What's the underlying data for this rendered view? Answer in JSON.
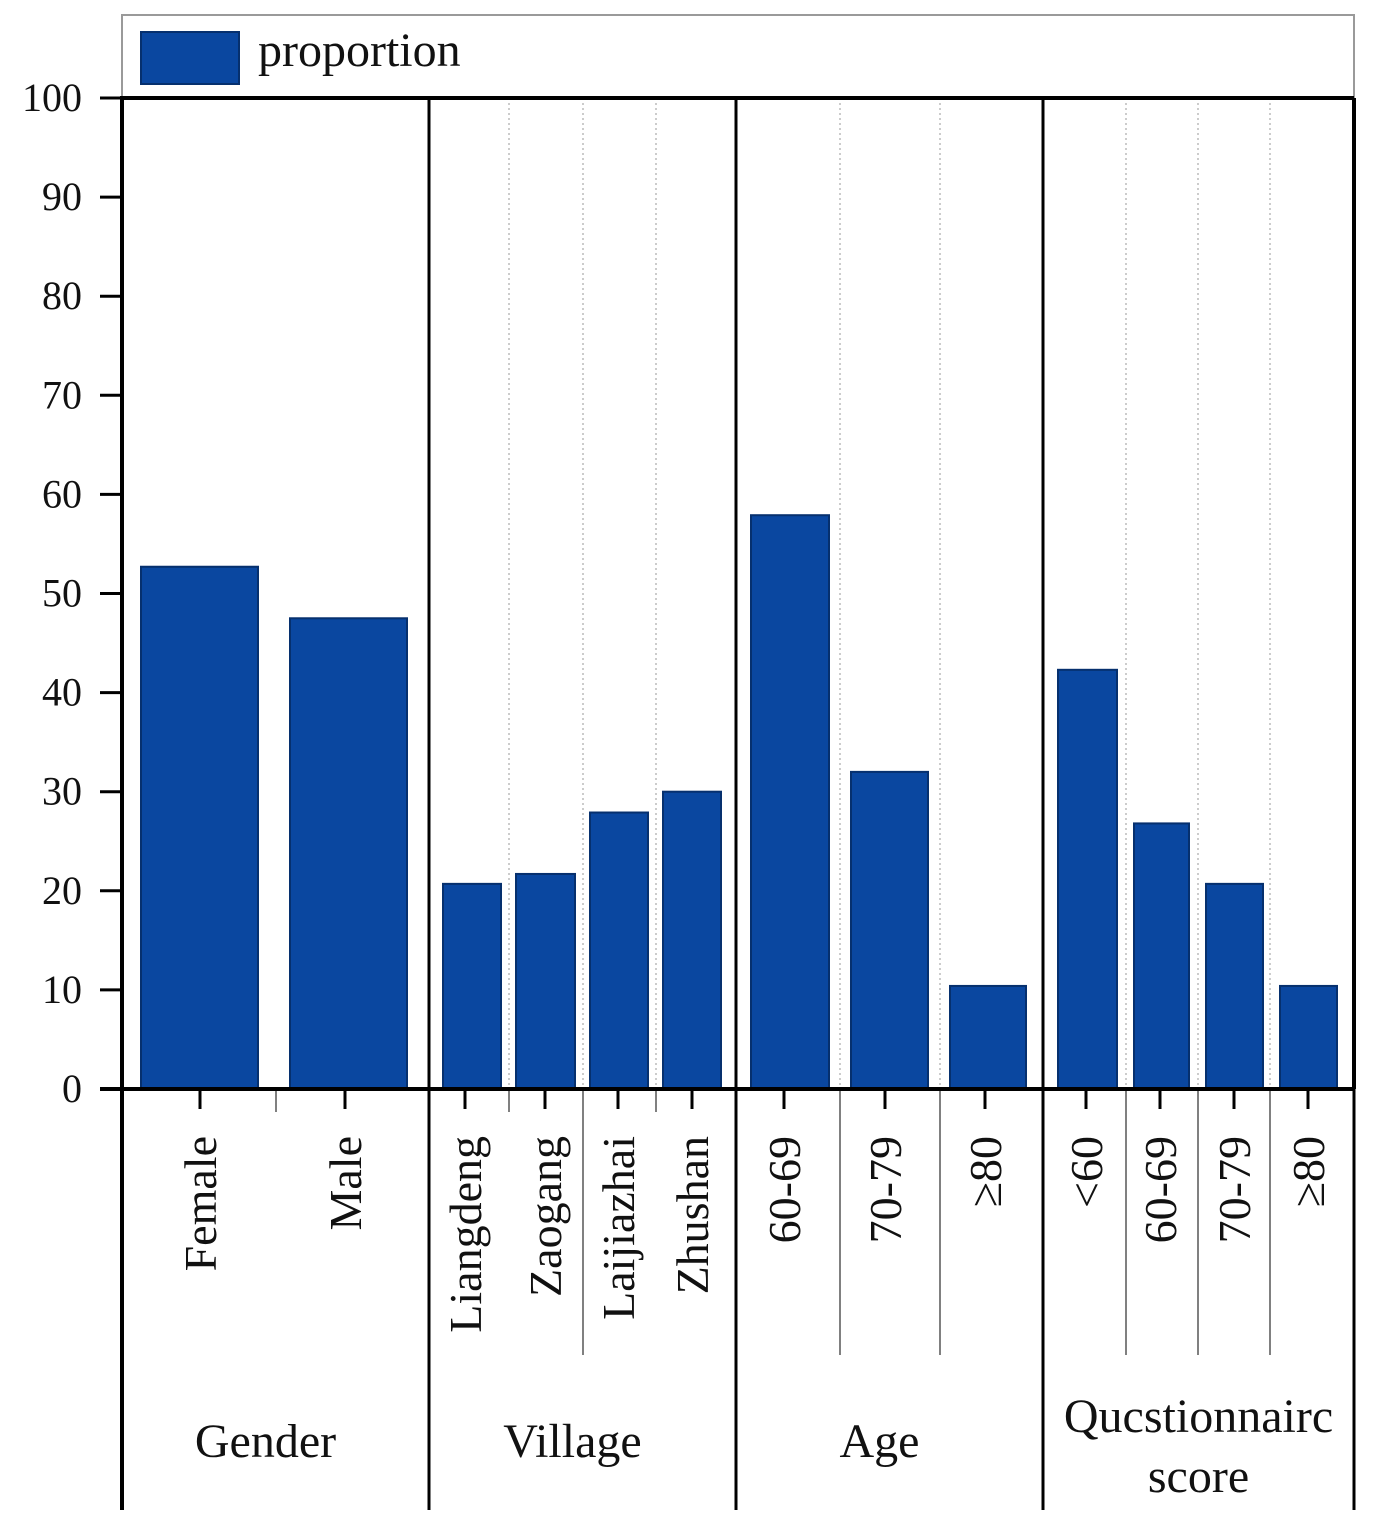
{
  "colors": {
    "bar": "#0a47a0",
    "bar_edge": "#06306e",
    "axis": "#000000",
    "divider_minor": "#999999"
  },
  "chart_data": {
    "type": "bar",
    "title": "",
    "xlabel": "",
    "ylabel": "",
    "ylim": [
      0,
      100
    ],
    "yticks": [
      0,
      10,
      20,
      30,
      40,
      50,
      60,
      70,
      80,
      90,
      100
    ],
    "legend": {
      "label": "proportion",
      "placement": "top-left"
    },
    "groups": [
      {
        "name": "Gender",
        "categories": [
          "Female",
          "Male"
        ],
        "values": [
          52.7,
          47.5
        ]
      },
      {
        "name": "Village",
        "categories": [
          "Liangdeng",
          "Zaogang",
          "Laijiazhai",
          "Zhushan"
        ],
        "values": [
          20.7,
          21.7,
          27.9,
          30.0
        ]
      },
      {
        "name": "Age",
        "categories": [
          "60-69",
          "70-79",
          "≥80"
        ],
        "values": [
          57.9,
          32.0,
          10.4
        ]
      },
      {
        "name": "Qucstionnairc score",
        "name_lines": [
          "Qucstionnairc",
          "score"
        ],
        "categories": [
          "<60",
          "60-69",
          "70-79",
          "≥80"
        ],
        "values": [
          42.3,
          26.8,
          20.7,
          10.4
        ]
      }
    ]
  }
}
